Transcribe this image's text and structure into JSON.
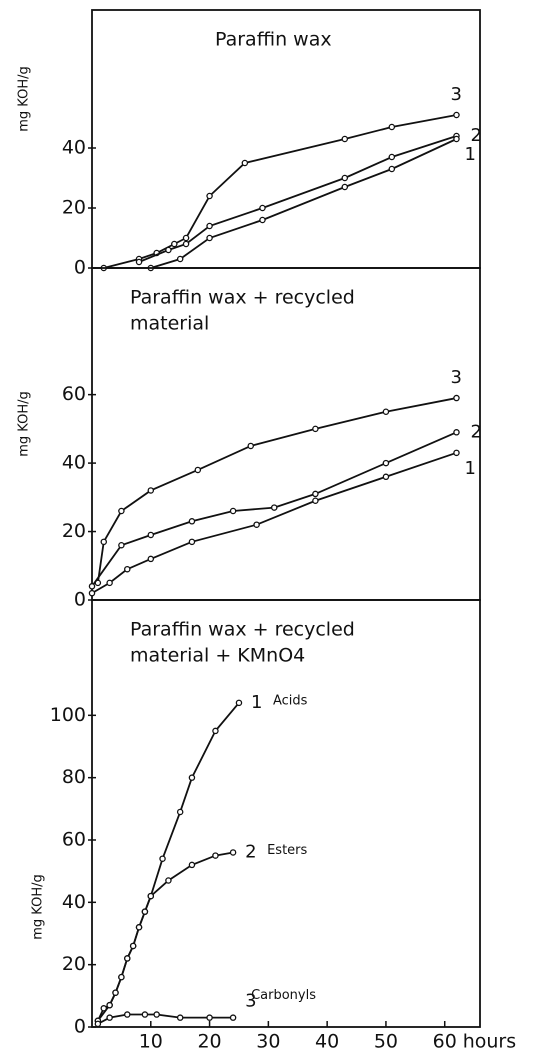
{
  "chart_data": [
    {
      "type": "line",
      "title": [
        "Paraffin wax"
      ],
      "y_label": "mg KOH/g",
      "xlim": [
        0,
        66
      ],
      "ylim": [
        0,
        86
      ],
      "yticks": [
        0,
        20,
        40
      ],
      "series": [
        {
          "name": "3",
          "color": "#111111",
          "x": [
            2,
            8,
            11,
            14,
            16,
            20,
            26,
            43,
            51,
            62
          ],
          "values": [
            0,
            3,
            5,
            8,
            10,
            24,
            35,
            43,
            47,
            51
          ]
        },
        {
          "name": "2",
          "color": "#111111",
          "x": [
            8,
            13,
            16,
            20,
            29,
            43,
            51,
            62
          ],
          "values": [
            2,
            6,
            8,
            14,
            20,
            30,
            37,
            44
          ]
        },
        {
          "name": "1",
          "color": "#111111",
          "x": [
            10,
            15,
            20,
            29,
            43,
            51,
            62
          ],
          "values": [
            0,
            3,
            10,
            16,
            27,
            33,
            43
          ]
        }
      ]
    },
    {
      "type": "line",
      "title": [
        "Paraffin wax + recycled",
        "material"
      ],
      "y_label": "mg KOH/g",
      "xlim": [
        0,
        66
      ],
      "ylim": [
        0,
        97
      ],
      "yticks": [
        0,
        20,
        40,
        60
      ],
      "series": [
        {
          "name": "3",
          "color": "#111111",
          "x": [
            1,
            2,
            5,
            10,
            18,
            27,
            38,
            50,
            62
          ],
          "values": [
            5,
            17,
            26,
            32,
            38,
            45,
            50,
            55,
            59
          ]
        },
        {
          "name": "2",
          "color": "#111111",
          "x": [
            0,
            5,
            10,
            17,
            24,
            31,
            38,
            50,
            62
          ],
          "values": [
            4,
            16,
            19,
            23,
            26,
            27,
            31,
            40,
            49
          ]
        },
        {
          "name": "1",
          "color": "#111111",
          "x": [
            0,
            3,
            6,
            10,
            17,
            28,
            38,
            50,
            62
          ],
          "values": [
            2,
            5,
            9,
            12,
            17,
            22,
            29,
            36,
            43
          ]
        }
      ]
    },
    {
      "type": "line",
      "title": [
        "Paraffin  wax + recycled",
        "material + KMnO4"
      ],
      "y_label": "mg KOH/g",
      "xlim": [
        0,
        66
      ],
      "ylim": [
        0,
        137
      ],
      "yticks": [
        0,
        20,
        40,
        60,
        80,
        100
      ],
      "xticks": [
        10,
        20,
        30,
        40,
        50,
        60
      ],
      "x_unit": "hours",
      "series": [
        {
          "name": "Acids",
          "label": "1",
          "color": "#111111",
          "x": [
            1,
            2,
            3,
            4,
            5,
            6,
            7,
            8,
            9,
            10,
            12,
            15,
            17,
            21,
            25
          ],
          "values": [
            2,
            6,
            7,
            11,
            16,
            22,
            26,
            32,
            37,
            42,
            54,
            69,
            80,
            95,
            104
          ]
        },
        {
          "name": "Esters",
          "label": "2",
          "color": "#111111",
          "x": [
            1,
            3,
            4,
            5,
            6,
            7,
            8,
            9,
            10,
            13,
            17,
            21,
            24
          ],
          "values": [
            2,
            7,
            11,
            16,
            22,
            26,
            32,
            37,
            42,
            47,
            52,
            55,
            56
          ]
        },
        {
          "name": "Carbonyls",
          "label": "3",
          "color": "#111111",
          "x": [
            1,
            3,
            6,
            9,
            11,
            15,
            20,
            24
          ],
          "values": [
            1,
            3,
            4,
            4,
            4,
            3,
            3,
            3
          ]
        }
      ]
    }
  ]
}
